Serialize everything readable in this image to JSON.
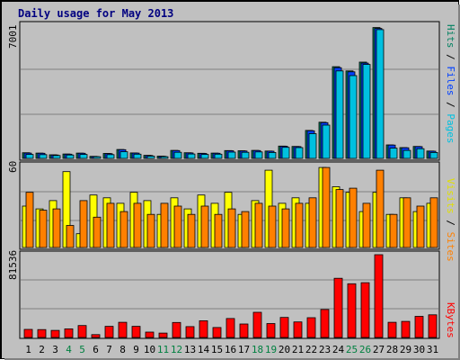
{
  "title": "Daily usage for May 2013",
  "colors": {
    "pages": "#00c0e0",
    "files": "#0040ff",
    "hits": "#008060",
    "sites": "#ff8000",
    "visits": "#ffff00",
    "kbytes": "#ff0000",
    "weekend_label": "#008040",
    "weekday_label": "#000000",
    "plot_bg": "#c0c0c0",
    "grid": "#808080"
  },
  "labels": {
    "pages": "Pages",
    "files": "Files",
    "hits": "Hits",
    "sites": "Sites",
    "visits": "Visits",
    "kbytes": "KBytes",
    "sep": " / "
  },
  "chart_data": [
    {
      "type": "bar",
      "panel": "hits-files-pages",
      "ymax_label": "7001",
      "ylim": [
        0,
        7001
      ],
      "categories": [
        "1",
        "2",
        "3",
        "4",
        "5",
        "6",
        "7",
        "8",
        "9",
        "10",
        "11",
        "12",
        "13",
        "14",
        "15",
        "16",
        "17",
        "18",
        "19",
        "20",
        "21",
        "22",
        "23",
        "24",
        "25",
        "26",
        "27",
        "28",
        "29",
        "30",
        "31"
      ],
      "weekend": [
        4,
        5,
        11,
        12,
        18,
        19,
        25,
        26
      ],
      "series": [
        {
          "name": "Hits",
          "values": [
            300,
            280,
            190,
            230,
            280,
            110,
            260,
            470,
            290,
            160,
            120,
            420,
            300,
            270,
            280,
            410,
            400,
            420,
            390,
            650,
            630,
            1470,
            1900,
            4820,
            4600,
            5060,
            6880,
            710,
            570,
            630,
            390
          ]
        },
        {
          "name": "Files",
          "values": [
            280,
            270,
            180,
            220,
            270,
            100,
            250,
            460,
            280,
            150,
            110,
            410,
            290,
            260,
            270,
            400,
            390,
            410,
            380,
            640,
            620,
            1450,
            1880,
            4770,
            4550,
            5010,
            6830,
            700,
            560,
            620,
            380
          ]
        },
        {
          "name": "Pages",
          "values": [
            210,
            200,
            150,
            180,
            210,
            90,
            200,
            350,
            220,
            120,
            90,
            320,
            230,
            210,
            220,
            330,
            320,
            340,
            310,
            580,
            570,
            1300,
            1750,
            4600,
            4350,
            4940,
            6770,
            540,
            420,
            510,
            310
          ]
        }
      ]
    },
    {
      "type": "bar",
      "panel": "visits-sites",
      "ymax_label": "60",
      "ylim": [
        0,
        60
      ],
      "categories": [
        "1",
        "2",
        "3",
        "4",
        "5",
        "6",
        "7",
        "8",
        "9",
        "10",
        "11",
        "12",
        "13",
        "14",
        "15",
        "16",
        "17",
        "18",
        "19",
        "20",
        "21",
        "22",
        "23",
        "24",
        "25",
        "26",
        "27",
        "28",
        "29",
        "30",
        "31"
      ],
      "weekend": [
        4,
        5,
        11,
        12,
        18,
        19,
        25,
        26
      ],
      "series": [
        {
          "name": "Visits",
          "values": [
            30,
            28,
            34,
            55,
            10,
            38,
            36,
            32,
            40,
            34,
            24,
            36,
            28,
            38,
            32,
            40,
            24,
            34,
            56,
            32,
            36,
            32,
            58,
            44,
            40,
            26,
            40,
            24,
            36,
            26,
            32
          ]
        },
        {
          "name": "Sites",
          "values": [
            40,
            27,
            28,
            16,
            34,
            22,
            32,
            26,
            32,
            24,
            32,
            30,
            24,
            30,
            24,
            28,
            26,
            32,
            30,
            28,
            32,
            36,
            58,
            42,
            43,
            32,
            56,
            24,
            36,
            30,
            36
          ]
        }
      ]
    },
    {
      "type": "bar",
      "panel": "kbytes",
      "ymax_label": "81536",
      "ylim": [
        0,
        81536
      ],
      "categories": [
        "1",
        "2",
        "3",
        "4",
        "5",
        "6",
        "7",
        "8",
        "9",
        "10",
        "11",
        "12",
        "13",
        "14",
        "15",
        "16",
        "17",
        "18",
        "19",
        "20",
        "21",
        "22",
        "23",
        "24",
        "25",
        "26",
        "27",
        "28",
        "29",
        "30",
        "31"
      ],
      "weekend": [
        4,
        5,
        11,
        12,
        18,
        19,
        25,
        26
      ],
      "series": [
        {
          "name": "KBytes",
          "values": [
            8000,
            7800,
            7000,
            8500,
            11800,
            2800,
            11000,
            15000,
            11000,
            5300,
            4300,
            14800,
            10700,
            16500,
            9800,
            18700,
            13300,
            24800,
            13700,
            19800,
            15300,
            19500,
            27600,
            58300,
            52900,
            54000,
            81536,
            15000,
            15900,
            20800,
            22300
          ]
        }
      ]
    }
  ]
}
